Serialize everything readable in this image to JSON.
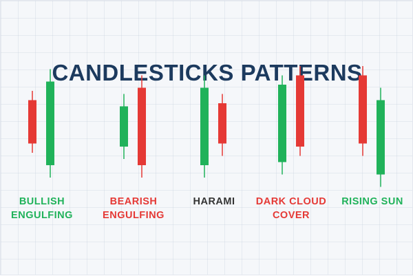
{
  "title": "CANDLESTICKS PATTERNS",
  "colors": {
    "bullish": "#20b25a",
    "bearish": "#e53935",
    "neutral_label": "#333333",
    "title": "#1c3a5e"
  },
  "patterns": [
    {
      "label": "BULLISH\nENGULFING",
      "label_color": "bullish",
      "candles": [
        {
          "type": "bearish",
          "open": 107,
          "close": 93,
          "high": 110,
          "low": 90
        },
        {
          "type": "bullish",
          "open": 86,
          "close": 113,
          "high": 117,
          "low": 82
        }
      ]
    },
    {
      "label": "BEARISH\nENGULFING",
      "label_color": "bearish",
      "candles": [
        {
          "type": "bullish",
          "open": 92,
          "close": 105,
          "high": 109,
          "low": 88
        },
        {
          "type": "bearish",
          "open": 111,
          "close": 86,
          "high": 115,
          "low": 82
        }
      ]
    },
    {
      "label": "HARAMI",
      "label_color": "neutral_label",
      "candles": [
        {
          "type": "bullish",
          "open": 86,
          "close": 111,
          "high": 115,
          "low": 82
        },
        {
          "type": "bearish",
          "open": 106,
          "close": 93,
          "high": 109,
          "low": 89
        }
      ]
    },
    {
      "label": "DARK CLOUD\nCOVER",
      "label_color": "bearish",
      "candles": [
        {
          "type": "bullish",
          "open": 87,
          "close": 112,
          "high": 115,
          "low": 83
        },
        {
          "type": "bearish",
          "open": 115,
          "close": 92,
          "high": 118,
          "low": 89
        }
      ]
    },
    {
      "label": "RISING SUN",
      "label_color": "bullish",
      "candles": [
        {
          "type": "bearish",
          "open": 115,
          "close": 93,
          "high": 118,
          "low": 89
        },
        {
          "type": "bullish",
          "open": 83,
          "close": 107,
          "high": 111,
          "low": 79
        }
      ]
    }
  ]
}
